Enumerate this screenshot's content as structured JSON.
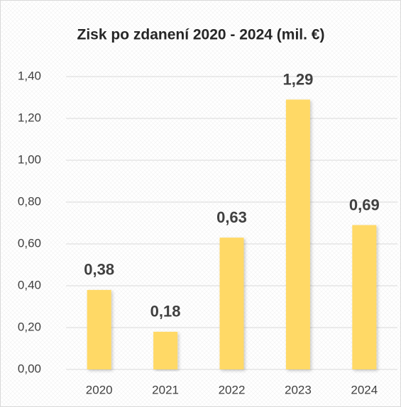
{
  "chart_data": {
    "type": "bar",
    "title": "Zisk po zdanení 2020 - 2024 (mil. €)",
    "categories": [
      "2020",
      "2021",
      "2022",
      "2023",
      "2024"
    ],
    "values": [
      0.38,
      0.18,
      0.63,
      1.29,
      0.69
    ],
    "value_labels": [
      "0,38",
      "0,18",
      "0,63",
      "1,29",
      "0,69"
    ],
    "color": "#ffd966",
    "ylim": [
      0,
      1.4
    ],
    "yticks": [
      {
        "value": 0,
        "label": "0,00"
      },
      {
        "value": 0.2,
        "label": "0,20"
      },
      {
        "value": 0.4,
        "label": "0,40"
      },
      {
        "value": 0.6,
        "label": "0,60"
      },
      {
        "value": 0.8,
        "label": "0,80"
      },
      {
        "value": 1.0,
        "label": "1,00"
      },
      {
        "value": 1.2,
        "label": "1,20"
      },
      {
        "value": 1.4,
        "label": "1,40"
      }
    ],
    "grid": true
  }
}
